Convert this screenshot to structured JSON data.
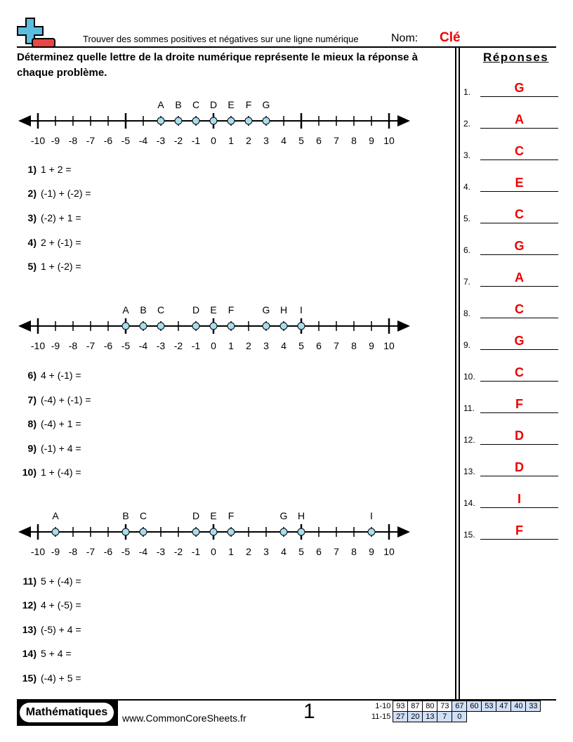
{
  "header": {
    "title": "Trouver des sommes positives et négatives sur une ligne numérique",
    "name_label": "Nom:",
    "name_value": "Clé"
  },
  "instructions": "Déterminez quelle lettre de la droite numérique représente le mieux la réponse à chaque problème.",
  "answers_title": "Réponses",
  "answers": [
    "G",
    "A",
    "C",
    "E",
    "C",
    "G",
    "A",
    "C",
    "G",
    "C",
    "F",
    "D",
    "D",
    "I",
    "F"
  ],
  "number_lines": [
    {
      "points": [
        [
          "A",
          -3
        ],
        [
          "B",
          -2
        ],
        [
          "C",
          -1
        ],
        [
          "D",
          0
        ],
        [
          "E",
          1
        ],
        [
          "F",
          2
        ],
        [
          "G",
          3
        ]
      ]
    },
    {
      "points": [
        [
          "A",
          -5
        ],
        [
          "B",
          -4
        ],
        [
          "C",
          -3
        ],
        [
          "D",
          -1
        ],
        [
          "E",
          0
        ],
        [
          "F",
          1
        ],
        [
          "G",
          3
        ],
        [
          "H",
          4
        ],
        [
          "I",
          5
        ]
      ]
    },
    {
      "points": [
        [
          "A",
          -9
        ],
        [
          "B",
          -5
        ],
        [
          "C",
          -4
        ],
        [
          "D",
          -1
        ],
        [
          "E",
          0
        ],
        [
          "F",
          1
        ],
        [
          "G",
          4
        ],
        [
          "H",
          5
        ],
        [
          "I",
          9
        ]
      ]
    }
  ],
  "axis": {
    "min": -10,
    "max": 10,
    "point_color": "#a8dcef"
  },
  "problems": [
    {
      "n": "1)",
      "q": "1 + 2 ="
    },
    {
      "n": "2)",
      "q": "(-1) + (-2) ="
    },
    {
      "n": "3)",
      "q": "(-2) + 1 ="
    },
    {
      "n": "4)",
      "q": "2 + (-1) ="
    },
    {
      "n": "5)",
      "q": "1 + (-2) ="
    },
    {
      "n": "6)",
      "q": "4 + (-1) ="
    },
    {
      "n": "7)",
      "q": "(-4) + (-1) ="
    },
    {
      "n": "8)",
      "q": "(-4) + 1 ="
    },
    {
      "n": "9)",
      "q": "(-1) + 4 ="
    },
    {
      "n": "10)",
      "q": "1 + (-4) ="
    },
    {
      "n": "11)",
      "q": "5 + (-4) ="
    },
    {
      "n": "12)",
      "q": "4 + (-5) ="
    },
    {
      "n": "13)",
      "q": "(-5) + 4 ="
    },
    {
      "n": "14)",
      "q": "5 + 4 ="
    },
    {
      "n": "15)",
      "q": "(-4) + 5 ="
    }
  ],
  "footer": {
    "brand": "Mathématiques",
    "url": "www.CommonCoreSheets.fr",
    "page": "1",
    "score_rows": [
      {
        "label": "1-10",
        "values": [
          "93",
          "87",
          "80",
          "73",
          "67",
          "60",
          "53",
          "47",
          "40",
          "33"
        ]
      },
      {
        "label": "11-15",
        "values": [
          "27",
          "20",
          "13",
          "7",
          "0"
        ]
      }
    ]
  }
}
